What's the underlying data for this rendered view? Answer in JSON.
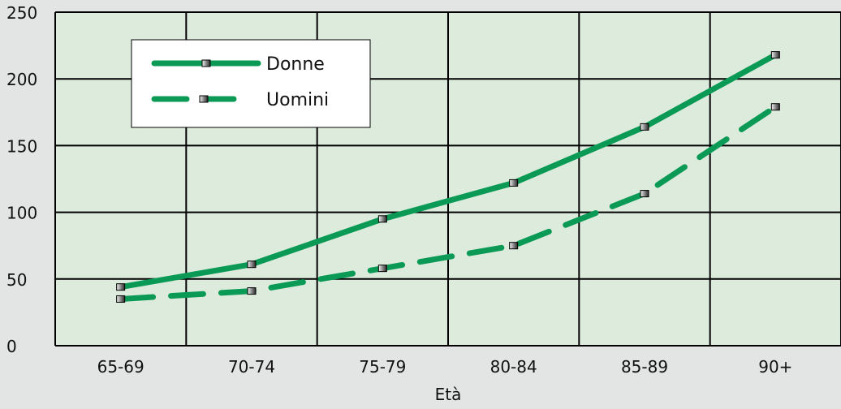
{
  "colors": {
    "background": "#e3e4e4",
    "plot_background": "#dcebdc",
    "grid": "#000000",
    "series": "#0b9a55",
    "legend_background": "#ffffff"
  },
  "chart_data": {
    "type": "line",
    "title": "",
    "xlabel": "Età",
    "ylabel": "",
    "categories": [
      "65-69",
      "70-74",
      "75-79",
      "80-84",
      "85-89",
      "90+"
    ],
    "y_ticks": [
      "0",
      "50",
      "100",
      "150",
      "200",
      "250"
    ],
    "ylim": [
      0,
      250
    ],
    "grid": true,
    "legend_position": "top-left",
    "marker": "small grey square",
    "series": [
      {
        "name": "Donne",
        "line_style": "solid",
        "values": [
          44,
          61,
          95,
          122,
          164,
          218
        ]
      },
      {
        "name": "Uomini",
        "line_style": "dashed",
        "values": [
          35,
          41,
          58,
          75,
          114,
          179
        ]
      }
    ]
  }
}
